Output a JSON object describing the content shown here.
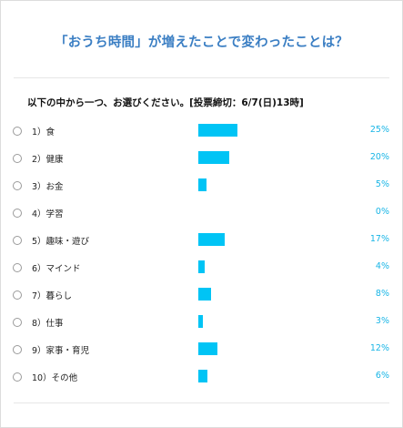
{
  "poll": {
    "title": "「おうち時間」が増えたことで変わったことは？",
    "question": "以下の中から一つ、お選びください。[投票締切：6/7(日)13時]",
    "accent_color": "#3a7ec3",
    "bar_color": "#00c4f5",
    "percent_color": "#18b5e6",
    "options": [
      {
        "label": "1）食",
        "percent": "25%",
        "value": 25
      },
      {
        "label": "2）健康",
        "percent": "20%",
        "value": 20
      },
      {
        "label": "3）お金",
        "percent": "5%",
        "value": 5
      },
      {
        "label": "4）学習",
        "percent": "0%",
        "value": 0
      },
      {
        "label": "5）趣味・遊び",
        "percent": "17%",
        "value": 17
      },
      {
        "label": "6）マインド",
        "percent": "4%",
        "value": 4
      },
      {
        "label": "7）暮らし",
        "percent": "8%",
        "value": 8
      },
      {
        "label": "8）仕事",
        "percent": "3%",
        "value": 3
      },
      {
        "label": "9）家事・育児",
        "percent": "12%",
        "value": 12
      },
      {
        "label": "10）その他",
        "percent": "6%",
        "value": 6
      }
    ]
  }
}
